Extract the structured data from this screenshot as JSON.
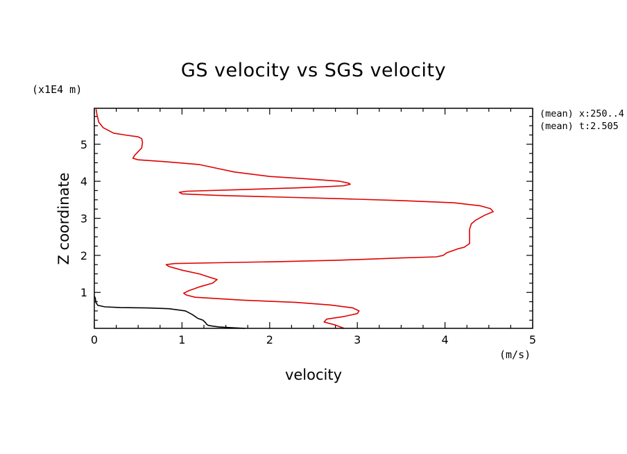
{
  "chart_data": {
    "type": "line",
    "title": "GS velocity vs SGS velocity",
    "xlabel": "velocity",
    "ylabel": "Z coordinate",
    "x_unit": "(m/s)",
    "y_unit": "(x1E4 m)",
    "xlim": [
      0,
      5
    ],
    "ylim": [
      0.03,
      5.97
    ],
    "x_ticks": [
      "0",
      "1",
      "2",
      "3",
      "4",
      "5"
    ],
    "y_ticks": [
      "1",
      "2",
      "3",
      "4",
      "5"
    ],
    "annotations": [
      "(mean) x:250..4",
      "(mean) t:2.505"
    ],
    "grid": false,
    "series": [
      {
        "color": "#e00000",
        "points": [
          [
            2.85,
            0.03
          ],
          [
            2.75,
            0.12
          ],
          [
            2.62,
            0.2
          ],
          [
            2.65,
            0.28
          ],
          [
            2.85,
            0.35
          ],
          [
            3.0,
            0.43
          ],
          [
            3.02,
            0.5
          ],
          [
            2.95,
            0.58
          ],
          [
            2.7,
            0.66
          ],
          [
            2.3,
            0.73
          ],
          [
            1.7,
            0.79
          ],
          [
            1.15,
            0.87
          ],
          [
            1.05,
            0.93
          ],
          [
            1.02,
            0.98
          ],
          [
            1.08,
            1.05
          ],
          [
            1.2,
            1.15
          ],
          [
            1.35,
            1.25
          ],
          [
            1.4,
            1.35
          ],
          [
            1.3,
            1.42
          ],
          [
            1.2,
            1.5
          ],
          [
            1.0,
            1.6
          ],
          [
            0.85,
            1.7
          ],
          [
            0.82,
            1.75
          ],
          [
            0.92,
            1.78
          ],
          [
            1.4,
            1.8
          ],
          [
            2.1,
            1.83
          ],
          [
            2.8,
            1.87
          ],
          [
            3.5,
            1.93
          ],
          [
            3.9,
            1.96
          ],
          [
            3.98,
            2.0
          ],
          [
            4.02,
            2.07
          ],
          [
            4.08,
            2.12
          ],
          [
            4.15,
            2.18
          ],
          [
            4.22,
            2.22
          ],
          [
            4.25,
            2.27
          ],
          [
            4.28,
            2.32
          ],
          [
            4.28,
            2.4
          ],
          [
            4.28,
            2.55
          ],
          [
            4.28,
            2.7
          ],
          [
            4.3,
            2.85
          ],
          [
            4.35,
            2.95
          ],
          [
            4.45,
            3.08
          ],
          [
            4.55,
            3.18
          ],
          [
            4.52,
            3.26
          ],
          [
            4.4,
            3.34
          ],
          [
            4.1,
            3.42
          ],
          [
            3.5,
            3.48
          ],
          [
            2.8,
            3.53
          ],
          [
            2.0,
            3.58
          ],
          [
            1.4,
            3.62
          ],
          [
            1.0,
            3.66
          ],
          [
            0.97,
            3.7
          ],
          [
            1.05,
            3.73
          ],
          [
            1.6,
            3.77
          ],
          [
            2.3,
            3.82
          ],
          [
            2.7,
            3.86
          ],
          [
            2.85,
            3.88
          ],
          [
            2.92,
            3.92
          ],
          [
            2.9,
            3.95
          ],
          [
            2.8,
            4.0
          ],
          [
            2.4,
            4.07
          ],
          [
            2.0,
            4.13
          ],
          [
            1.6,
            4.25
          ],
          [
            1.4,
            4.35
          ],
          [
            1.2,
            4.45
          ],
          [
            0.8,
            4.53
          ],
          [
            0.5,
            4.58
          ],
          [
            0.44,
            4.62
          ],
          [
            0.46,
            4.7
          ],
          [
            0.5,
            4.8
          ],
          [
            0.54,
            4.9
          ],
          [
            0.55,
            5.05
          ],
          [
            0.54,
            5.15
          ],
          [
            0.5,
            5.2
          ],
          [
            0.38,
            5.24
          ],
          [
            0.22,
            5.3
          ],
          [
            0.1,
            5.45
          ],
          [
            0.05,
            5.6
          ],
          [
            0.03,
            5.8
          ],
          [
            0.02,
            5.95
          ]
        ]
      },
      {
        "color": "#000000",
        "points": [
          [
            1.72,
            0.03
          ],
          [
            1.55,
            0.05
          ],
          [
            1.42,
            0.07
          ],
          [
            1.35,
            0.09
          ],
          [
            1.3,
            0.11
          ],
          [
            1.28,
            0.14
          ],
          [
            1.27,
            0.18
          ],
          [
            1.24,
            0.25
          ],
          [
            1.18,
            0.3
          ],
          [
            1.12,
            0.4
          ],
          [
            1.04,
            0.5
          ],
          [
            0.85,
            0.56
          ],
          [
            0.6,
            0.58
          ],
          [
            0.3,
            0.59
          ],
          [
            0.12,
            0.61
          ],
          [
            0.04,
            0.65
          ],
          [
            0.02,
            0.72
          ],
          [
            0.01,
            0.85
          ],
          [
            0.0,
            0.9
          ]
        ]
      }
    ]
  }
}
